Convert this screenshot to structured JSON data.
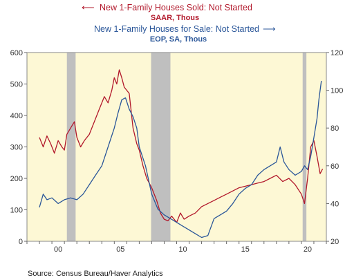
{
  "chart_data": {
    "type": "line",
    "title_left": "New 1-Family Houses Sold: Not Started",
    "subtitle_left": "SAAR, Thous",
    "title_right": "New 1-Family Houses for Sale: Not Started",
    "subtitle_right": "EOP, SA, Thous",
    "source": "Source:  Census Bureau/Haver Analytics",
    "x_range": [
      1998,
      2022
    ],
    "x_ticks": [
      {
        "v": 2000,
        "label": "00"
      },
      {
        "v": 2005,
        "label": "05"
      },
      {
        "v": 2010,
        "label": "10"
      },
      {
        "v": 2015,
        "label": "15"
      },
      {
        "v": 2020,
        "label": "20"
      }
    ],
    "y_left": {
      "range": [
        0,
        600
      ],
      "ticks": [
        0,
        100,
        200,
        300,
        400,
        500,
        600
      ]
    },
    "y_right": {
      "range": [
        20,
        120
      ],
      "ticks": [
        20,
        40,
        60,
        80,
        100,
        120
      ]
    },
    "recessions": [
      [
        2001.2,
        2001.9
      ],
      [
        2007.95,
        2009.5
      ],
      [
        2020.1,
        2020.4
      ]
    ],
    "background": "#fdf8d5",
    "recession_color": "#bfbfbf",
    "series": [
      {
        "axis": "left",
        "color": "#b2182b",
        "points": [
          [
            1999.0,
            330
          ],
          [
            1999.3,
            300
          ],
          [
            1999.6,
            335
          ],
          [
            1999.9,
            310
          ],
          [
            2000.2,
            280
          ],
          [
            2000.5,
            320
          ],
          [
            2000.8,
            300
          ],
          [
            2001.0,
            290
          ],
          [
            2001.2,
            340
          ],
          [
            2001.5,
            360
          ],
          [
            2001.8,
            380
          ],
          [
            2002.0,
            330
          ],
          [
            2002.3,
            300
          ],
          [
            2002.6,
            320
          ],
          [
            2003.0,
            340
          ],
          [
            2003.4,
            380
          ],
          [
            2003.8,
            420
          ],
          [
            2004.2,
            460
          ],
          [
            2004.5,
            440
          ],
          [
            2004.8,
            480
          ],
          [
            2005.0,
            520
          ],
          [
            2005.2,
            500
          ],
          [
            2005.4,
            545
          ],
          [
            2005.6,
            520
          ],
          [
            2005.8,
            490
          ],
          [
            2006.0,
            480
          ],
          [
            2006.2,
            470
          ],
          [
            2006.5,
            360
          ],
          [
            2006.8,
            310
          ],
          [
            2007.0,
            290
          ],
          [
            2007.3,
            240
          ],
          [
            2007.6,
            200
          ],
          [
            2008.0,
            170
          ],
          [
            2008.4,
            130
          ],
          [
            2008.7,
            90
          ],
          [
            2009.0,
            70
          ],
          [
            2009.3,
            65
          ],
          [
            2009.6,
            80
          ],
          [
            2010.0,
            60
          ],
          [
            2010.3,
            90
          ],
          [
            2010.6,
            70
          ],
          [
            2011.0,
            80
          ],
          [
            2011.5,
            90
          ],
          [
            2012.0,
            110
          ],
          [
            2012.5,
            120
          ],
          [
            2013.0,
            130
          ],
          [
            2013.5,
            140
          ],
          [
            2014.0,
            150
          ],
          [
            2014.5,
            160
          ],
          [
            2015.0,
            170
          ],
          [
            2015.5,
            175
          ],
          [
            2016.0,
            180
          ],
          [
            2016.5,
            185
          ],
          [
            2017.0,
            190
          ],
          [
            2017.5,
            200
          ],
          [
            2018.0,
            210
          ],
          [
            2018.5,
            190
          ],
          [
            2019.0,
            200
          ],
          [
            2019.5,
            180
          ],
          [
            2020.0,
            150
          ],
          [
            2020.25,
            120
          ],
          [
            2020.5,
            200
          ],
          [
            2020.75,
            300
          ],
          [
            2021.0,
            320
          ],
          [
            2021.25,
            270
          ],
          [
            2021.5,
            215
          ],
          [
            2021.7,
            230
          ]
        ]
      },
      {
        "axis": "right",
        "color": "#2a5699",
        "points": [
          [
            1999.0,
            38
          ],
          [
            1999.3,
            45
          ],
          [
            1999.6,
            42
          ],
          [
            2000.0,
            43
          ],
          [
            2000.5,
            40
          ],
          [
            2001.0,
            42
          ],
          [
            2001.5,
            43
          ],
          [
            2002.0,
            42
          ],
          [
            2002.5,
            45
          ],
          [
            2003.0,
            50
          ],
          [
            2003.5,
            55
          ],
          [
            2004.0,
            60
          ],
          [
            2004.5,
            70
          ],
          [
            2005.0,
            80
          ],
          [
            2005.3,
            88
          ],
          [
            2005.6,
            95
          ],
          [
            2005.9,
            96
          ],
          [
            2006.2,
            90
          ],
          [
            2006.5,
            86
          ],
          [
            2006.8,
            80
          ],
          [
            2007.0,
            70
          ],
          [
            2007.5,
            60
          ],
          [
            2008.0,
            45
          ],
          [
            2008.5,
            37
          ],
          [
            2009.0,
            34
          ],
          [
            2009.5,
            32
          ],
          [
            2010.0,
            30
          ],
          [
            2010.5,
            28
          ],
          [
            2011.0,
            26
          ],
          [
            2011.5,
            24
          ],
          [
            2012.0,
            22
          ],
          [
            2012.5,
            23
          ],
          [
            2013.0,
            32
          ],
          [
            2013.5,
            34
          ],
          [
            2014.0,
            36
          ],
          [
            2014.5,
            40
          ],
          [
            2015.0,
            45
          ],
          [
            2015.5,
            48
          ],
          [
            2016.0,
            50
          ],
          [
            2016.5,
            55
          ],
          [
            2017.0,
            58
          ],
          [
            2017.5,
            60
          ],
          [
            2018.0,
            62
          ],
          [
            2018.3,
            70
          ],
          [
            2018.6,
            62
          ],
          [
            2019.0,
            58
          ],
          [
            2019.5,
            55
          ],
          [
            2020.0,
            57
          ],
          [
            2020.25,
            60
          ],
          [
            2020.5,
            58
          ],
          [
            2020.75,
            65
          ],
          [
            2021.0,
            75
          ],
          [
            2021.25,
            85
          ],
          [
            2021.4,
            95
          ],
          [
            2021.6,
            105
          ]
        ]
      }
    ]
  }
}
